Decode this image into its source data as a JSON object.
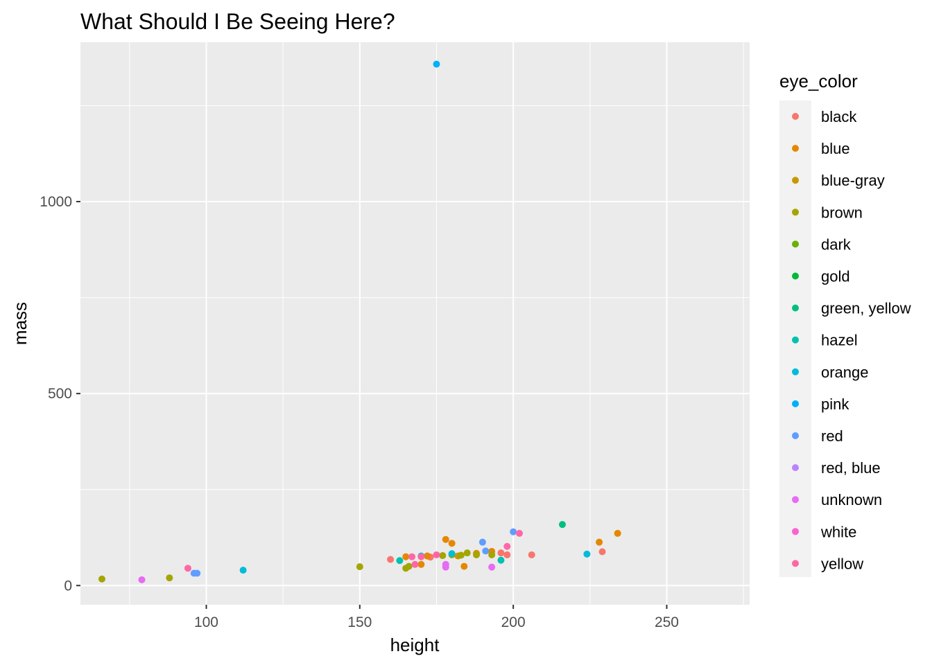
{
  "chart_data": {
    "type": "scatter",
    "title": "What Should I Be Seeing Here?",
    "xlabel": "height",
    "ylabel": "mass",
    "xlim": [
      59,
      277
    ],
    "ylim": [
      -50,
      1415
    ],
    "x_ticks": [
      100,
      150,
      200,
      250
    ],
    "y_ticks": [
      0,
      500,
      1000
    ],
    "x_tick_labels": [
      "100",
      "150",
      "200",
      "250"
    ],
    "y_tick_labels": [
      "0",
      "500",
      "1000"
    ],
    "grid": true,
    "legend": {
      "title": "eye_color",
      "placement": "right"
    },
    "series": [
      {
        "name": "black",
        "color": "#F8766D",
        "points": [
          [
            160,
            68
          ],
          [
            172,
            77
          ],
          [
            173,
            74
          ],
          [
            196,
            85
          ],
          [
            198,
            80
          ],
          [
            206,
            80
          ],
          [
            229,
            88
          ]
        ]
      },
      {
        "name": "blue",
        "color": "#E58700",
        "points": [
          [
            165,
            75
          ],
          [
            170,
            55
          ],
          [
            172,
            77
          ],
          [
            178,
            120
          ],
          [
            180,
            110
          ],
          [
            184,
            50
          ],
          [
            188,
            84
          ],
          [
            193,
            89
          ],
          [
            228,
            113
          ],
          [
            234,
            136
          ]
        ]
      },
      {
        "name": "blue-gray",
        "color": "#C99800",
        "points": [
          [
            182,
            77
          ]
        ]
      },
      {
        "name": "brown",
        "color": "#A3A500",
        "points": [
          [
            66,
            17
          ],
          [
            88,
            20
          ],
          [
            150,
            49
          ],
          [
            165,
            45
          ],
          [
            166,
            50
          ],
          [
            177,
            78
          ],
          [
            180,
            80
          ],
          [
            183,
            79
          ],
          [
            185,
            85
          ],
          [
            188,
            80
          ],
          [
            193,
            80
          ]
        ]
      },
      {
        "name": "dark",
        "color": "#6BB100",
        "points": []
      },
      {
        "name": "gold",
        "color": "#00BA38",
        "points": []
      },
      {
        "name": "green, yellow",
        "color": "#00BF7D",
        "points": [
          [
            216,
            159
          ]
        ]
      },
      {
        "name": "hazel",
        "color": "#00C0AF",
        "points": [
          [
            163,
            65
          ],
          [
            196,
            66
          ]
        ]
      },
      {
        "name": "orange",
        "color": "#00BCD8",
        "points": [
          [
            112,
            40
          ],
          [
            170,
            77
          ],
          [
            180,
            83
          ],
          [
            224,
            82
          ]
        ]
      },
      {
        "name": "pink",
        "color": "#00B0F6",
        "points": [
          [
            175,
            1358
          ]
        ]
      },
      {
        "name": "red",
        "color": "#619CFF",
        "points": [
          [
            96,
            32
          ],
          [
            97,
            32
          ],
          [
            190,
            113
          ],
          [
            191,
            90
          ],
          [
            200,
            140
          ]
        ]
      },
      {
        "name": "red, blue",
        "color": "#B983FF",
        "points": []
      },
      {
        "name": "unknown",
        "color": "#E76BF3",
        "points": [
          [
            79,
            15
          ],
          [
            178,
            48
          ],
          [
            178,
            55
          ],
          [
            193,
            48
          ]
        ]
      },
      {
        "name": "white",
        "color": "#FD61D1",
        "points": []
      },
      {
        "name": "yellow",
        "color": "#FF67A4",
        "points": [
          [
            94,
            45
          ],
          [
            167,
            75
          ],
          [
            168,
            55
          ],
          [
            170,
            75
          ],
          [
            175,
            80
          ],
          [
            198,
            102
          ],
          [
            202,
            136
          ]
        ]
      }
    ]
  }
}
